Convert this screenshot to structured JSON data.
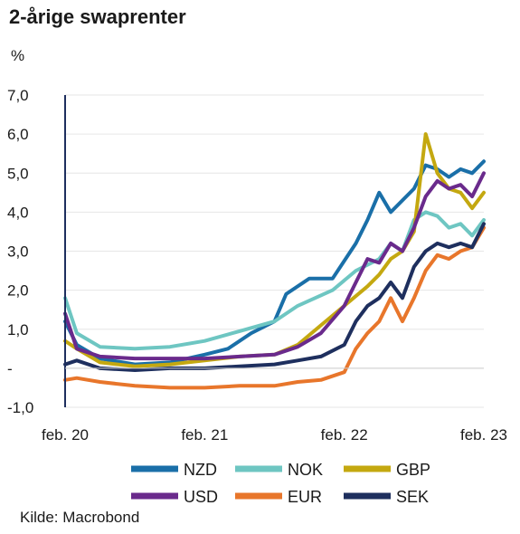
{
  "chart_data": {
    "type": "line",
    "title": "2-årige swaprenter",
    "ylabel": "%",
    "source": "Kilde: Macrobond",
    "x_domain": [
      "2020-02",
      "2023-02"
    ],
    "ylim": [
      -1.0,
      7.0
    ],
    "y_ticks": [
      {
        "v": 7,
        "label": "7,0"
      },
      {
        "v": 6,
        "label": "6,0"
      },
      {
        "v": 5,
        "label": "5,0"
      },
      {
        "v": 4,
        "label": "4,0"
      },
      {
        "v": 3,
        "label": "3,0"
      },
      {
        "v": 2,
        "label": "2,0"
      },
      {
        "v": 1,
        "label": "1,0"
      },
      {
        "v": 0,
        "label": "-"
      },
      {
        "v": -1,
        "label": "-1,0"
      }
    ],
    "x_ticks": [
      {
        "v": "2020-02",
        "label": "feb. 20"
      },
      {
        "v": "2021-02",
        "label": "feb. 21"
      },
      {
        "v": "2022-02",
        "label": "feb. 22"
      },
      {
        "v": "2023-02",
        "label": "feb. 23"
      }
    ],
    "legend_position": "bottom",
    "series": [
      {
        "name": "NZD",
        "color": "#1a6fa8",
        "points": [
          [
            "2020-02",
            1.2
          ],
          [
            "2020-03",
            0.6
          ],
          [
            "2020-05",
            0.25
          ],
          [
            "2020-08",
            0.1
          ],
          [
            "2020-11",
            0.15
          ],
          [
            "2021-02",
            0.35
          ],
          [
            "2021-04",
            0.5
          ],
          [
            "2021-06",
            0.9
          ],
          [
            "2021-08",
            1.2
          ],
          [
            "2021-09",
            1.9
          ],
          [
            "2021-11",
            2.3
          ],
          [
            "2022-01",
            2.3
          ],
          [
            "2022-03",
            3.2
          ],
          [
            "2022-04",
            3.8
          ],
          [
            "2022-05",
            4.5
          ],
          [
            "2022-06",
            4.0
          ],
          [
            "2022-07",
            4.3
          ],
          [
            "2022-08",
            4.6
          ],
          [
            "2022-09",
            5.2
          ],
          [
            "2022-10",
            5.1
          ],
          [
            "2022-11",
            4.9
          ],
          [
            "2022-12",
            5.1
          ],
          [
            "2023-01",
            5.0
          ],
          [
            "2023-02",
            5.3
          ]
        ]
      },
      {
        "name": "NOK",
        "color": "#6ec6c2",
        "points": [
          [
            "2020-02",
            1.8
          ],
          [
            "2020-03",
            0.9
          ],
          [
            "2020-05",
            0.55
          ],
          [
            "2020-08",
            0.5
          ],
          [
            "2020-11",
            0.55
          ],
          [
            "2021-02",
            0.7
          ],
          [
            "2021-05",
            0.95
          ],
          [
            "2021-08",
            1.2
          ],
          [
            "2021-10",
            1.6
          ],
          [
            "2022-01",
            2.0
          ],
          [
            "2022-03",
            2.5
          ],
          [
            "2022-05",
            2.8
          ],
          [
            "2022-06",
            3.2
          ],
          [
            "2022-07",
            3.0
          ],
          [
            "2022-08",
            3.8
          ],
          [
            "2022-09",
            4.0
          ],
          [
            "2022-10",
            3.9
          ],
          [
            "2022-11",
            3.6
          ],
          [
            "2022-12",
            3.7
          ],
          [
            "2023-01",
            3.4
          ],
          [
            "2023-02",
            3.8
          ]
        ]
      },
      {
        "name": "GBP",
        "color": "#c4a810",
        "points": [
          [
            "2020-02",
            0.7
          ],
          [
            "2020-03",
            0.5
          ],
          [
            "2020-05",
            0.15
          ],
          [
            "2020-08",
            0.05
          ],
          [
            "2020-11",
            0.1
          ],
          [
            "2021-02",
            0.2
          ],
          [
            "2021-05",
            0.3
          ],
          [
            "2021-08",
            0.35
          ],
          [
            "2021-10",
            0.6
          ],
          [
            "2021-12",
            1.1
          ],
          [
            "2022-02",
            1.6
          ],
          [
            "2022-04",
            2.1
          ],
          [
            "2022-05",
            2.4
          ],
          [
            "2022-06",
            2.8
          ],
          [
            "2022-07",
            3.0
          ],
          [
            "2022-08",
            3.5
          ],
          [
            "2022-09",
            6.0
          ],
          [
            "2022-10",
            5.0
          ],
          [
            "2022-11",
            4.6
          ],
          [
            "2022-12",
            4.5
          ],
          [
            "2023-01",
            4.1
          ],
          [
            "2023-02",
            4.5
          ]
        ]
      },
      {
        "name": "USD",
        "color": "#6a2a8c",
        "points": [
          [
            "2020-02",
            1.4
          ],
          [
            "2020-03",
            0.5
          ],
          [
            "2020-05",
            0.3
          ],
          [
            "2020-08",
            0.25
          ],
          [
            "2020-11",
            0.25
          ],
          [
            "2021-02",
            0.25
          ],
          [
            "2021-05",
            0.3
          ],
          [
            "2021-08",
            0.35
          ],
          [
            "2021-10",
            0.55
          ],
          [
            "2021-12",
            0.9
          ],
          [
            "2022-02",
            1.6
          ],
          [
            "2022-03",
            2.2
          ],
          [
            "2022-04",
            2.8
          ],
          [
            "2022-05",
            2.7
          ],
          [
            "2022-06",
            3.2
          ],
          [
            "2022-07",
            3.0
          ],
          [
            "2022-08",
            3.6
          ],
          [
            "2022-09",
            4.4
          ],
          [
            "2022-10",
            4.8
          ],
          [
            "2022-11",
            4.6
          ],
          [
            "2022-12",
            4.7
          ],
          [
            "2023-01",
            4.4
          ],
          [
            "2023-02",
            5.0
          ]
        ]
      },
      {
        "name": "EUR",
        "color": "#e8762b",
        "points": [
          [
            "2020-02",
            -0.3
          ],
          [
            "2020-03",
            -0.25
          ],
          [
            "2020-05",
            -0.35
          ],
          [
            "2020-08",
            -0.45
          ],
          [
            "2020-11",
            -0.5
          ],
          [
            "2021-02",
            -0.5
          ],
          [
            "2021-05",
            -0.45
          ],
          [
            "2021-08",
            -0.45
          ],
          [
            "2021-10",
            -0.35
          ],
          [
            "2021-12",
            -0.3
          ],
          [
            "2022-02",
            -0.1
          ],
          [
            "2022-03",
            0.5
          ],
          [
            "2022-04",
            0.9
          ],
          [
            "2022-05",
            1.2
          ],
          [
            "2022-06",
            1.8
          ],
          [
            "2022-07",
            1.2
          ],
          [
            "2022-08",
            1.8
          ],
          [
            "2022-09",
            2.5
          ],
          [
            "2022-10",
            2.9
          ],
          [
            "2022-11",
            2.8
          ],
          [
            "2022-12",
            3.0
          ],
          [
            "2023-01",
            3.1
          ],
          [
            "2023-02",
            3.6
          ]
        ]
      },
      {
        "name": "SEK",
        "color": "#1e2f5e",
        "points": [
          [
            "2020-02",
            0.1
          ],
          [
            "2020-03",
            0.2
          ],
          [
            "2020-05",
            0.0
          ],
          [
            "2020-08",
            -0.05
          ],
          [
            "2020-11",
            0.0
          ],
          [
            "2021-02",
            0.0
          ],
          [
            "2021-05",
            0.05
          ],
          [
            "2021-08",
            0.1
          ],
          [
            "2021-10",
            0.2
          ],
          [
            "2021-12",
            0.3
          ],
          [
            "2022-02",
            0.6
          ],
          [
            "2022-03",
            1.2
          ],
          [
            "2022-04",
            1.6
          ],
          [
            "2022-05",
            1.8
          ],
          [
            "2022-06",
            2.2
          ],
          [
            "2022-07",
            1.8
          ],
          [
            "2022-08",
            2.6
          ],
          [
            "2022-09",
            3.0
          ],
          [
            "2022-10",
            3.2
          ],
          [
            "2022-11",
            3.1
          ],
          [
            "2022-12",
            3.2
          ],
          [
            "2023-01",
            3.1
          ],
          [
            "2023-02",
            3.7
          ]
        ]
      }
    ]
  }
}
